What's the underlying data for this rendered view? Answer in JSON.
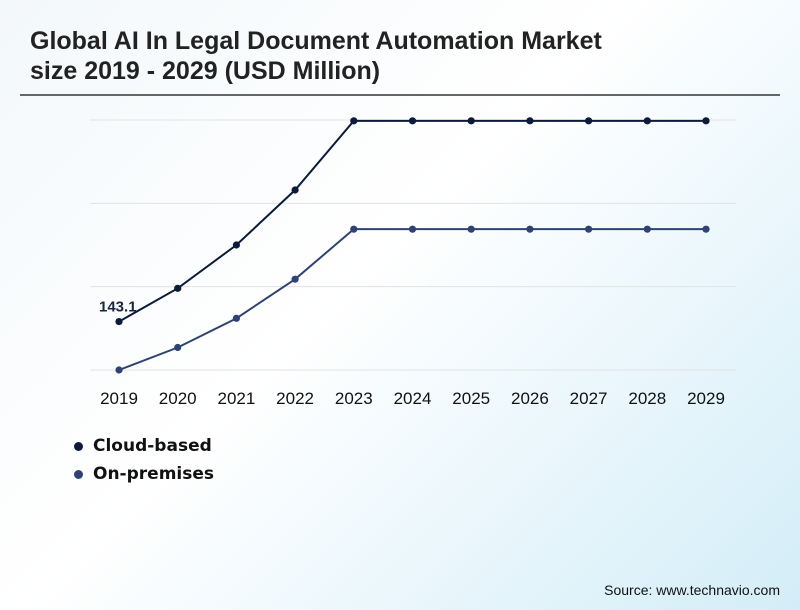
{
  "chart_data": {
    "type": "line",
    "title": "Global AI In Legal Document Automation Market size 2019 - 2029 (USD Million)",
    "xlabel": "",
    "ylabel": "",
    "categories": [
      "2019",
      "2020",
      "2021",
      "2022",
      "2023",
      "2024",
      "2025",
      "2026",
      "2027",
      "2028",
      "2029"
    ],
    "ylim": [
      85,
      385
    ],
    "gridlines": true,
    "series": [
      {
        "name": "Cloud-based",
        "color": "#0d1a3a",
        "values": [
          143.1,
          183,
          235,
          301,
          384,
          384,
          384,
          384,
          384,
          384,
          384
        ]
      },
      {
        "name": "On-premises",
        "color": "#2e4373",
        "values": [
          85,
          112,
          147,
          194,
          254,
          254,
          254,
          254,
          254,
          254,
          254
        ]
      }
    ],
    "annotations": [
      {
        "series": 0,
        "index": 0,
        "text": "143.1"
      }
    ],
    "legend_position": "bottom-left"
  },
  "source": "Source: www.technavio.com"
}
